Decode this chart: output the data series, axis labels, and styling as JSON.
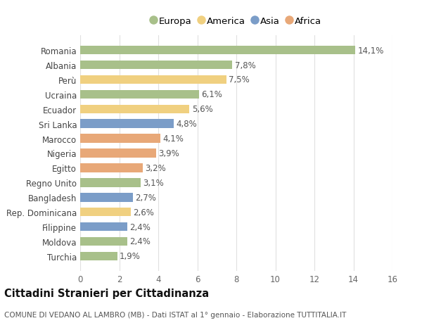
{
  "countries": [
    "Turchia",
    "Moldova",
    "Filippine",
    "Rep. Dominicana",
    "Bangladesh",
    "Regno Unito",
    "Egitto",
    "Nigeria",
    "Marocco",
    "Sri Lanka",
    "Ecuador",
    "Ucraina",
    "Perù",
    "Albania",
    "Romania"
  ],
  "values": [
    1.9,
    2.4,
    2.4,
    2.6,
    2.7,
    3.1,
    3.2,
    3.9,
    4.1,
    4.8,
    5.6,
    6.1,
    7.5,
    7.8,
    14.1
  ],
  "labels": [
    "1,9%",
    "2,4%",
    "2,4%",
    "2,6%",
    "2,7%",
    "3,1%",
    "3,2%",
    "3,9%",
    "4,1%",
    "4,8%",
    "5,6%",
    "6,1%",
    "7,5%",
    "7,8%",
    "14,1%"
  ],
  "continents": [
    "Europa",
    "Europa",
    "Asia",
    "America",
    "Asia",
    "Europa",
    "Africa",
    "Africa",
    "Africa",
    "Asia",
    "America",
    "Europa",
    "America",
    "Europa",
    "Europa"
  ],
  "continent_colors": {
    "Europa": "#a8c08a",
    "America": "#f0d080",
    "Asia": "#7b9dc8",
    "Africa": "#e8a878"
  },
  "legend_order": [
    "Europa",
    "America",
    "Asia",
    "Africa"
  ],
  "title1": "Cittadini Stranieri per Cittadinanza",
  "title2": "COMUNE DI VEDANO AL LAMBRO (MB) - Dati ISTAT al 1° gennaio - Elaborazione TUTTITALIA.IT",
  "xlim": [
    0,
    16
  ],
  "xticks": [
    0,
    2,
    4,
    6,
    8,
    10,
    12,
    14,
    16
  ],
  "background_color": "#ffffff",
  "grid_color": "#e0e0e0",
  "bar_height": 0.6,
  "label_fontsize": 8.5,
  "tick_fontsize": 8.5,
  "ytick_fontsize": 8.5,
  "title1_fontsize": 10.5,
  "title2_fontsize": 7.5,
  "legend_fontsize": 9.5
}
